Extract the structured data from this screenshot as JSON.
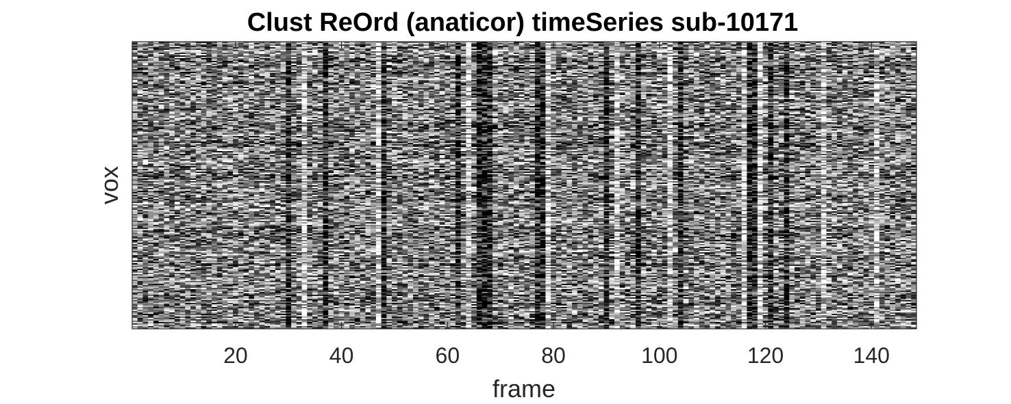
{
  "chart_data": {
    "type": "heatmap",
    "title": "Clust ReOrd (anaticor) timeSeries sub-10171",
    "xlabel": "frame",
    "ylabel": "vox",
    "xlim": [
      0.5,
      148.5
    ],
    "x_ticks": [
      20,
      40,
      60,
      80,
      100,
      120,
      140
    ],
    "y_ticks": [],
    "colormap": "gray",
    "n_frames": 148,
    "n_voxel_rows": 210,
    "dark_frames": [
      30,
      37,
      48,
      62,
      66,
      67,
      68,
      77,
      78,
      90,
      96,
      104,
      117,
      118,
      121,
      124
    ],
    "bright_frames": [
      33,
      47,
      64,
      79,
      92,
      102,
      116,
      119,
      131,
      141
    ],
    "colors": {
      "axis": "#262626",
      "background": "#ffffff",
      "low": "#000000",
      "high": "#ffffff"
    }
  }
}
